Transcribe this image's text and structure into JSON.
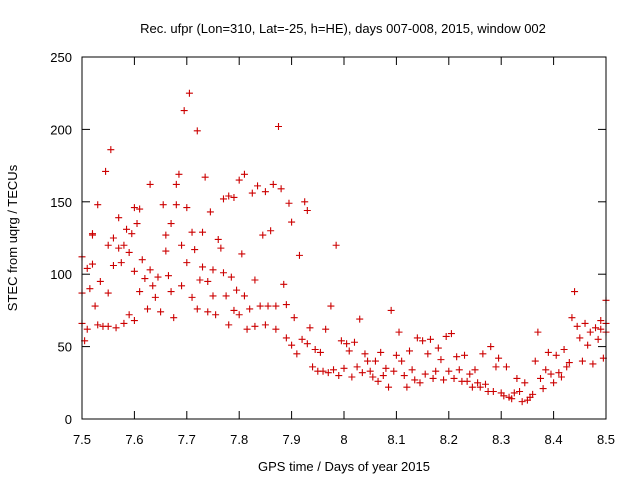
{
  "chart_data": {
    "type": "scatter",
    "title": "Rec. ufpr (Lon=310, Lat=-25, h=HE), days 007-008, 2015, window 002",
    "xlabel": "GPS time / Days of year 2015",
    "ylabel": "STEC from uqrg / TECUs",
    "xlim": [
      7.5,
      8.5
    ],
    "ylim": [
      0,
      250
    ],
    "xticks": [
      "7.5",
      "7.6",
      "7.7",
      "7.8",
      "7.9",
      "8",
      "8.1",
      "8.2",
      "8.3",
      "8.4",
      "8.5"
    ],
    "yticks": [
      "0",
      "50",
      "100",
      "150",
      "200",
      "250"
    ],
    "grid": false,
    "marker": "+",
    "color": "#cc0000",
    "series": [
      {
        "name": "STEC",
        "points": [
          [
            7.5,
            66
          ],
          [
            7.5,
            87
          ],
          [
            7.5,
            112
          ],
          [
            7.505,
            54
          ],
          [
            7.51,
            104
          ],
          [
            7.51,
            62
          ],
          [
            7.515,
            90
          ],
          [
            7.52,
            128
          ],
          [
            7.52,
            127
          ],
          [
            7.52,
            107
          ],
          [
            7.525,
            78
          ],
          [
            7.53,
            148
          ],
          [
            7.53,
            65
          ],
          [
            7.535,
            95
          ],
          [
            7.54,
            64
          ],
          [
            7.545,
            171
          ],
          [
            7.55,
            120
          ],
          [
            7.55,
            87
          ],
          [
            7.55,
            64
          ],
          [
            7.555,
            186
          ],
          [
            7.56,
            106
          ],
          [
            7.56,
            125
          ],
          [
            7.565,
            63
          ],
          [
            7.57,
            139
          ],
          [
            7.57,
            118
          ],
          [
            7.575,
            108
          ],
          [
            7.58,
            66
          ],
          [
            7.58,
            120
          ],
          [
            7.585,
            131
          ],
          [
            7.59,
            115
          ],
          [
            7.59,
            72
          ],
          [
            7.595,
            128
          ],
          [
            7.6,
            146
          ],
          [
            7.6,
            102
          ],
          [
            7.6,
            68
          ],
          [
            7.605,
            135
          ],
          [
            7.61,
            145
          ],
          [
            7.61,
            88
          ],
          [
            7.615,
            110
          ],
          [
            7.62,
            97
          ],
          [
            7.625,
            76
          ],
          [
            7.63,
            162
          ],
          [
            7.63,
            103
          ],
          [
            7.635,
            92
          ],
          [
            7.64,
            84
          ],
          [
            7.645,
            98
          ],
          [
            7.65,
            74
          ],
          [
            7.655,
            148
          ],
          [
            7.66,
            127
          ],
          [
            7.66,
            116
          ],
          [
            7.665,
            99
          ],
          [
            7.67,
            135
          ],
          [
            7.67,
            88
          ],
          [
            7.675,
            70
          ],
          [
            7.68,
            148
          ],
          [
            7.68,
            162
          ],
          [
            7.685,
            169
          ],
          [
            7.69,
            92
          ],
          [
            7.69,
            120
          ],
          [
            7.695,
            213
          ],
          [
            7.7,
            146
          ],
          [
            7.7,
            108
          ],
          [
            7.705,
            225
          ],
          [
            7.71,
            84
          ],
          [
            7.71,
            129
          ],
          [
            7.715,
            117
          ],
          [
            7.72,
            76
          ],
          [
            7.72,
            199
          ],
          [
            7.725,
            96
          ],
          [
            7.73,
            105
          ],
          [
            7.73,
            129
          ],
          [
            7.735,
            167
          ],
          [
            7.74,
            74
          ],
          [
            7.74,
            95
          ],
          [
            7.745,
            143
          ],
          [
            7.75,
            103
          ],
          [
            7.75,
            85
          ],
          [
            7.755,
            72
          ],
          [
            7.76,
            124
          ],
          [
            7.765,
            118
          ],
          [
            7.77,
            152
          ],
          [
            7.77,
            101
          ],
          [
            7.775,
            85
          ],
          [
            7.78,
            154
          ],
          [
            7.78,
            65
          ],
          [
            7.785,
            98
          ],
          [
            7.79,
            153
          ],
          [
            7.79,
            75
          ],
          [
            7.795,
            89
          ],
          [
            7.8,
            165
          ],
          [
            7.8,
            72
          ],
          [
            7.805,
            114
          ],
          [
            7.81,
            169
          ],
          [
            7.81,
            85
          ],
          [
            7.815,
            62
          ],
          [
            7.82,
            76
          ],
          [
            7.825,
            156
          ],
          [
            7.83,
            96
          ],
          [
            7.83,
            64
          ],
          [
            7.835,
            161
          ],
          [
            7.84,
            78
          ],
          [
            7.845,
            127
          ],
          [
            7.85,
            157
          ],
          [
            7.85,
            65
          ],
          [
            7.855,
            78
          ],
          [
            7.86,
            130
          ],
          [
            7.865,
            162
          ],
          [
            7.87,
            62
          ],
          [
            7.87,
            78
          ],
          [
            7.875,
            202
          ],
          [
            7.88,
            159
          ],
          [
            7.885,
            93
          ],
          [
            7.89,
            79
          ],
          [
            7.89,
            56
          ],
          [
            7.895,
            149
          ],
          [
            7.9,
            136
          ],
          [
            7.9,
            51
          ],
          [
            7.905,
            70
          ],
          [
            7.91,
            45
          ],
          [
            7.915,
            113
          ],
          [
            7.92,
            55
          ],
          [
            7.925,
            150
          ],
          [
            7.93,
            144
          ],
          [
            7.93,
            52
          ],
          [
            7.935,
            63
          ],
          [
            7.94,
            36
          ],
          [
            7.945,
            48
          ],
          [
            7.95,
            33
          ],
          [
            7.955,
            46
          ],
          [
            7.96,
            33
          ],
          [
            7.965,
            62
          ],
          [
            7.97,
            32
          ],
          [
            7.975,
            78
          ],
          [
            7.98,
            34
          ],
          [
            7.985,
            120
          ],
          [
            7.99,
            30
          ],
          [
            7.995,
            54
          ],
          [
            8.0,
            35
          ],
          [
            8.005,
            52
          ],
          [
            8.01,
            47
          ],
          [
            8.015,
            29
          ],
          [
            8.02,
            53
          ],
          [
            8.025,
            36
          ],
          [
            8.03,
            69
          ],
          [
            8.035,
            32
          ],
          [
            8.04,
            45
          ],
          [
            8.045,
            40
          ],
          [
            8.05,
            33
          ],
          [
            8.055,
            29
          ],
          [
            8.06,
            40
          ],
          [
            8.065,
            26
          ],
          [
            8.07,
            46
          ],
          [
            8.075,
            30
          ],
          [
            8.08,
            35
          ],
          [
            8.085,
            22
          ],
          [
            8.09,
            75
          ],
          [
            8.095,
            33
          ],
          [
            8.1,
            44
          ],
          [
            8.105,
            60
          ],
          [
            8.11,
            40
          ],
          [
            8.115,
            30
          ],
          [
            8.12,
            22
          ],
          [
            8.125,
            47
          ],
          [
            8.13,
            34
          ],
          [
            8.135,
            27
          ],
          [
            8.14,
            56
          ],
          [
            8.145,
            25
          ],
          [
            8.15,
            54
          ],
          [
            8.155,
            31
          ],
          [
            8.16,
            45
          ],
          [
            8.165,
            55
          ],
          [
            8.17,
            28
          ],
          [
            8.175,
            33
          ],
          [
            8.18,
            49
          ],
          [
            8.185,
            41
          ],
          [
            8.19,
            27
          ],
          [
            8.195,
            57
          ],
          [
            8.2,
            33
          ],
          [
            8.205,
            59
          ],
          [
            8.21,
            28
          ],
          [
            8.215,
            43
          ],
          [
            8.22,
            34
          ],
          [
            8.225,
            26
          ],
          [
            8.23,
            44
          ],
          [
            8.235,
            26
          ],
          [
            8.24,
            31
          ],
          [
            8.245,
            22
          ],
          [
            8.25,
            34
          ],
          [
            8.255,
            25
          ],
          [
            8.26,
            22
          ],
          [
            8.265,
            45
          ],
          [
            8.27,
            24
          ],
          [
            8.275,
            19
          ],
          [
            8.28,
            50
          ],
          [
            8.285,
            19
          ],
          [
            8.29,
            36
          ],
          [
            8.295,
            42
          ],
          [
            8.3,
            18
          ],
          [
            8.305,
            16
          ],
          [
            8.31,
            36
          ],
          [
            8.315,
            15
          ],
          [
            8.32,
            14
          ],
          [
            8.325,
            18
          ],
          [
            8.33,
            28
          ],
          [
            8.335,
            19
          ],
          [
            8.34,
            12
          ],
          [
            8.345,
            25
          ],
          [
            8.35,
            13
          ],
          [
            8.355,
            15
          ],
          [
            8.36,
            17
          ],
          [
            8.365,
            40
          ],
          [
            8.37,
            60
          ],
          [
            8.375,
            28
          ],
          [
            8.38,
            21
          ],
          [
            8.385,
            34
          ],
          [
            8.39,
            46
          ],
          [
            8.395,
            31
          ],
          [
            8.4,
            25
          ],
          [
            8.405,
            44
          ],
          [
            8.41,
            32
          ],
          [
            8.415,
            29
          ],
          [
            8.42,
            48
          ],
          [
            8.425,
            36
          ],
          [
            8.43,
            39
          ],
          [
            8.435,
            70
          ],
          [
            8.44,
            88
          ],
          [
            8.445,
            64
          ],
          [
            8.45,
            56
          ],
          [
            8.455,
            40
          ],
          [
            8.46,
            66
          ],
          [
            8.465,
            51
          ],
          [
            8.47,
            60
          ],
          [
            8.475,
            38
          ],
          [
            8.48,
            63
          ],
          [
            8.485,
            55
          ],
          [
            8.49,
            62
          ],
          [
            8.495,
            42
          ],
          [
            8.5,
            82
          ],
          [
            8.5,
            66
          ],
          [
            8.5,
            60
          ],
          [
            8.49,
            68
          ]
        ]
      }
    ]
  }
}
